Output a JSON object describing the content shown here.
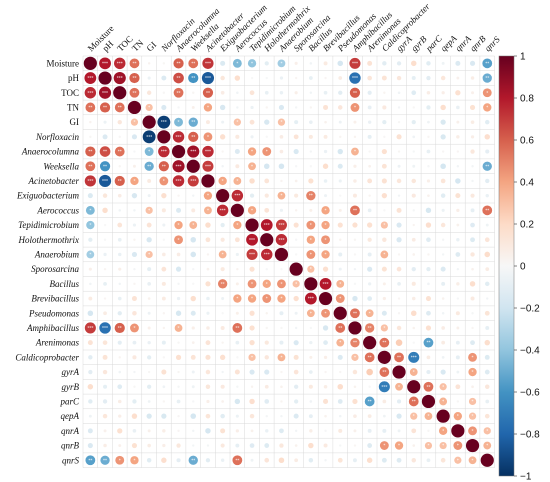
{
  "chart_data": {
    "type": "heatmap",
    "style": "circle-correlation-matrix",
    "title": "",
    "variables": [
      {
        "name": "Moisture",
        "italic": false
      },
      {
        "name": "pH",
        "italic": false
      },
      {
        "name": "TOC",
        "italic": false
      },
      {
        "name": "TN",
        "italic": false
      },
      {
        "name": "GI",
        "italic": false
      },
      {
        "name": "Norfloxacin",
        "italic": true
      },
      {
        "name": "Anaerocolumna",
        "italic": true
      },
      {
        "name": "Weeksella",
        "italic": true
      },
      {
        "name": "Acinetobacter",
        "italic": true
      },
      {
        "name": "Exiguobacterium",
        "italic": true
      },
      {
        "name": "Aerococcus",
        "italic": true
      },
      {
        "name": "Tepidimicrobium",
        "italic": true
      },
      {
        "name": "Holothermothrix",
        "italic": true
      },
      {
        "name": "Anaerobium",
        "italic": true
      },
      {
        "name": "Sporosarcina",
        "italic": true
      },
      {
        "name": "Bacillus",
        "italic": true
      },
      {
        "name": "Brevibacillus",
        "italic": true
      },
      {
        "name": "Pseudomonas",
        "italic": true
      },
      {
        "name": "Amphibacillus",
        "italic": true
      },
      {
        "name": "Arenimonas",
        "italic": true
      },
      {
        "name": "Caldicoprobacter",
        "italic": true
      },
      {
        "name": "gyrA",
        "italic": true
      },
      {
        "name": "gyrB",
        "italic": true
      },
      {
        "name": "parC",
        "italic": true
      },
      {
        "name": "qepA",
        "italic": true
      },
      {
        "name": "qnrA",
        "italic": true
      },
      {
        "name": "qnrB",
        "italic": true
      },
      {
        "name": "qnrS",
        "italic": true
      }
    ],
    "strong_pairs": [
      [
        0,
        1,
        0.8
      ],
      [
        0,
        2,
        0.75
      ],
      [
        0,
        3,
        0.55
      ],
      [
        0,
        6,
        0.6
      ],
      [
        0,
        7,
        0.55
      ],
      [
        0,
        8,
        0.72
      ],
      [
        0,
        10,
        -0.45
      ],
      [
        0,
        11,
        -0.4
      ],
      [
        0,
        13,
        -0.35
      ],
      [
        0,
        18,
        0.7
      ],
      [
        0,
        27,
        -0.55
      ],
      [
        1,
        2,
        0.85
      ],
      [
        1,
        3,
        0.6
      ],
      [
        1,
        6,
        0.65
      ],
      [
        1,
        7,
        -0.6
      ],
      [
        1,
        8,
        -0.85
      ],
      [
        1,
        18,
        -0.75
      ],
      [
        1,
        27,
        -0.5
      ],
      [
        2,
        3,
        0.55
      ],
      [
        2,
        6,
        0.55
      ],
      [
        2,
        8,
        0.6
      ],
      [
        2,
        18,
        0.6
      ],
      [
        2,
        27,
        0.45
      ],
      [
        3,
        4,
        0.3
      ],
      [
        3,
        8,
        0.4
      ],
      [
        3,
        18,
        0.45
      ],
      [
        3,
        27,
        0.4
      ],
      [
        4,
        5,
        -0.95
      ],
      [
        4,
        6,
        -0.45
      ],
      [
        4,
        7,
        -0.5
      ],
      [
        4,
        10,
        0.3
      ],
      [
        4,
        13,
        0.3
      ],
      [
        5,
        6,
        0.75
      ],
      [
        5,
        7,
        0.6
      ],
      [
        5,
        8,
        0.45
      ],
      [
        6,
        7,
        0.85
      ],
      [
        6,
        8,
        0.75
      ],
      [
        6,
        11,
        0.4
      ],
      [
        6,
        12,
        0.45
      ],
      [
        6,
        18,
        0.35
      ],
      [
        7,
        8,
        0.7
      ],
      [
        7,
        11,
        0.35
      ],
      [
        7,
        27,
        -0.5
      ],
      [
        8,
        9,
        0.4
      ],
      [
        8,
        10,
        0.35
      ],
      [
        9,
        10,
        0.75
      ],
      [
        9,
        13,
        0.35
      ],
      [
        9,
        15,
        0.5
      ],
      [
        10,
        11,
        0.4
      ],
      [
        10,
        16,
        0.4
      ],
      [
        10,
        18,
        0.55
      ],
      [
        10,
        27,
        0.55
      ],
      [
        11,
        12,
        0.8
      ],
      [
        11,
        13,
        0.7
      ],
      [
        11,
        15,
        0.45
      ],
      [
        11,
        16,
        0.4
      ],
      [
        11,
        20,
        0.3
      ],
      [
        12,
        13,
        0.75
      ],
      [
        12,
        15,
        0.4
      ],
      [
        12,
        16,
        0.45
      ],
      [
        13,
        15,
        0.45
      ],
      [
        13,
        16,
        0.4
      ],
      [
        13,
        20,
        0.35
      ],
      [
        14,
        15,
        0.3
      ],
      [
        15,
        16,
        0.8
      ],
      [
        15,
        17,
        0.35
      ],
      [
        16,
        17,
        0.45
      ],
      [
        17,
        18,
        0.55
      ],
      [
        17,
        19,
        0.35
      ],
      [
        18,
        19,
        0.5
      ],
      [
        18,
        20,
        0.3
      ],
      [
        19,
        20,
        0.55
      ],
      [
        19,
        21,
        0.25
      ],
      [
        19,
        23,
        -0.55
      ],
      [
        20,
        21,
        0.55
      ],
      [
        20,
        22,
        -0.7
      ],
      [
        20,
        26,
        0.45
      ],
      [
        21,
        22,
        0.35
      ],
      [
        21,
        26,
        0.4
      ],
      [
        22,
        23,
        0.55
      ],
      [
        22,
        24,
        0.3
      ],
      [
        23,
        24,
        0.35
      ],
      [
        23,
        26,
        0.3
      ],
      [
        24,
        25,
        0.4
      ],
      [
        24,
        26,
        0.3
      ],
      [
        25,
        26,
        0.45
      ],
      [
        25,
        27,
        0.3
      ],
      [
        26,
        27,
        0.35
      ]
    ],
    "colorbar": {
      "range": [
        -1,
        1
      ],
      "ticks": [
        1,
        0.8,
        0.6,
        0.4,
        0.2,
        0,
        -0.2,
        -0.4,
        -0.6,
        -0.8,
        -1
      ],
      "colors": {
        "negative": "#053061",
        "neutral": "#f7f7f7",
        "positive": "#67001f"
      }
    },
    "legend": "right",
    "grid": true
  }
}
